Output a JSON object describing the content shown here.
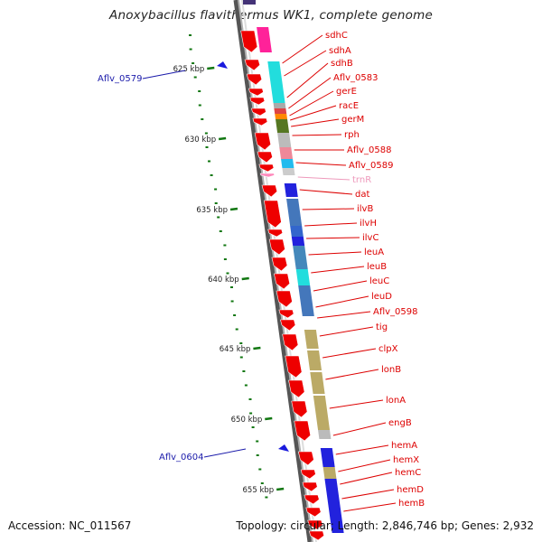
{
  "title": "Anoxybacillus flavithermus WK1, complete genome",
  "footer": {
    "accession": "Accession: NC_011567",
    "summary": "Topology: circular; Length: 2,846,746 bp; Genes: 2,932"
  },
  "colors": {
    "cds_arrow": "#ee0000",
    "backbone": "#8a8a8a",
    "gc_dots": "#117711",
    "label_red": "#dd0000",
    "label_blue": "#1a1aaa",
    "trna_pink": "#ee99bb"
  },
  "scale_ticks": [
    {
      "label": "625 kbp"
    },
    {
      "label": "630 kbp"
    },
    {
      "label": "635 kbp"
    },
    {
      "label": "640 kbp"
    },
    {
      "label": "645 kbp"
    },
    {
      "label": "650 kbp"
    },
    {
      "label": "655 kbp"
    }
  ],
  "genes": [
    {
      "name": "sdhC"
    },
    {
      "name": "sdhA"
    },
    {
      "name": "sdhB"
    },
    {
      "name": "Aflv_0583"
    },
    {
      "name": "gerE"
    },
    {
      "name": "racE"
    },
    {
      "name": "gerM"
    },
    {
      "name": "rph"
    },
    {
      "name": "Aflv_0588"
    },
    {
      "name": "Aflv_0589"
    },
    {
      "name": "trnR",
      "type": "trna"
    },
    {
      "name": "dat"
    },
    {
      "name": "ilvB"
    },
    {
      "name": "ilvH"
    },
    {
      "name": "ilvC"
    },
    {
      "name": "leuA"
    },
    {
      "name": "leuB"
    },
    {
      "name": "leuC"
    },
    {
      "name": "leuD"
    },
    {
      "name": "Aflv_0598"
    },
    {
      "name": "tig"
    },
    {
      "name": "clpX"
    },
    {
      "name": "lonB"
    },
    {
      "name": "lonA"
    },
    {
      "name": "engB"
    },
    {
      "name": "hemA"
    },
    {
      "name": "hemX"
    },
    {
      "name": "hemC"
    },
    {
      "name": "hemD"
    },
    {
      "name": "hemB"
    }
  ],
  "outer_markers": [
    {
      "name": "Aflv_0579"
    },
    {
      "name": "Aflv_0604"
    }
  ]
}
